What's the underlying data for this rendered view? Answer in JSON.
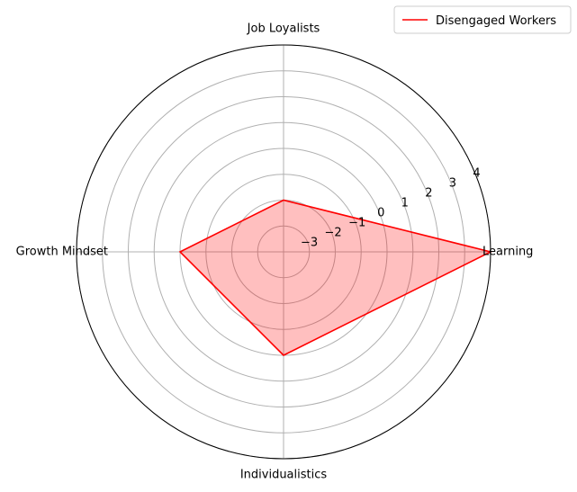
{
  "chart_data": {
    "type": "radar",
    "categories": [
      "Learning",
      "Job Loyalists",
      "Growth Mindset",
      "Individualistics"
    ],
    "series": [
      {
        "name": "Disengaged Workers",
        "values": [
          4,
          -2,
          0,
          0
        ],
        "color": "#ff0000",
        "fill_color": "#ff0000",
        "fill_alpha": 0.25
      }
    ],
    "radial_ticks": [
      "−3",
      "−2",
      "−1",
      "0",
      "1",
      "2",
      "3",
      "4"
    ],
    "radial_tick_values": [
      -3,
      -2,
      -1,
      0,
      1,
      2,
      3,
      4
    ],
    "rlim": [
      -4,
      4
    ],
    "grid": true,
    "grid_color": "#b0b0b0",
    "legend_position": "top-right"
  }
}
